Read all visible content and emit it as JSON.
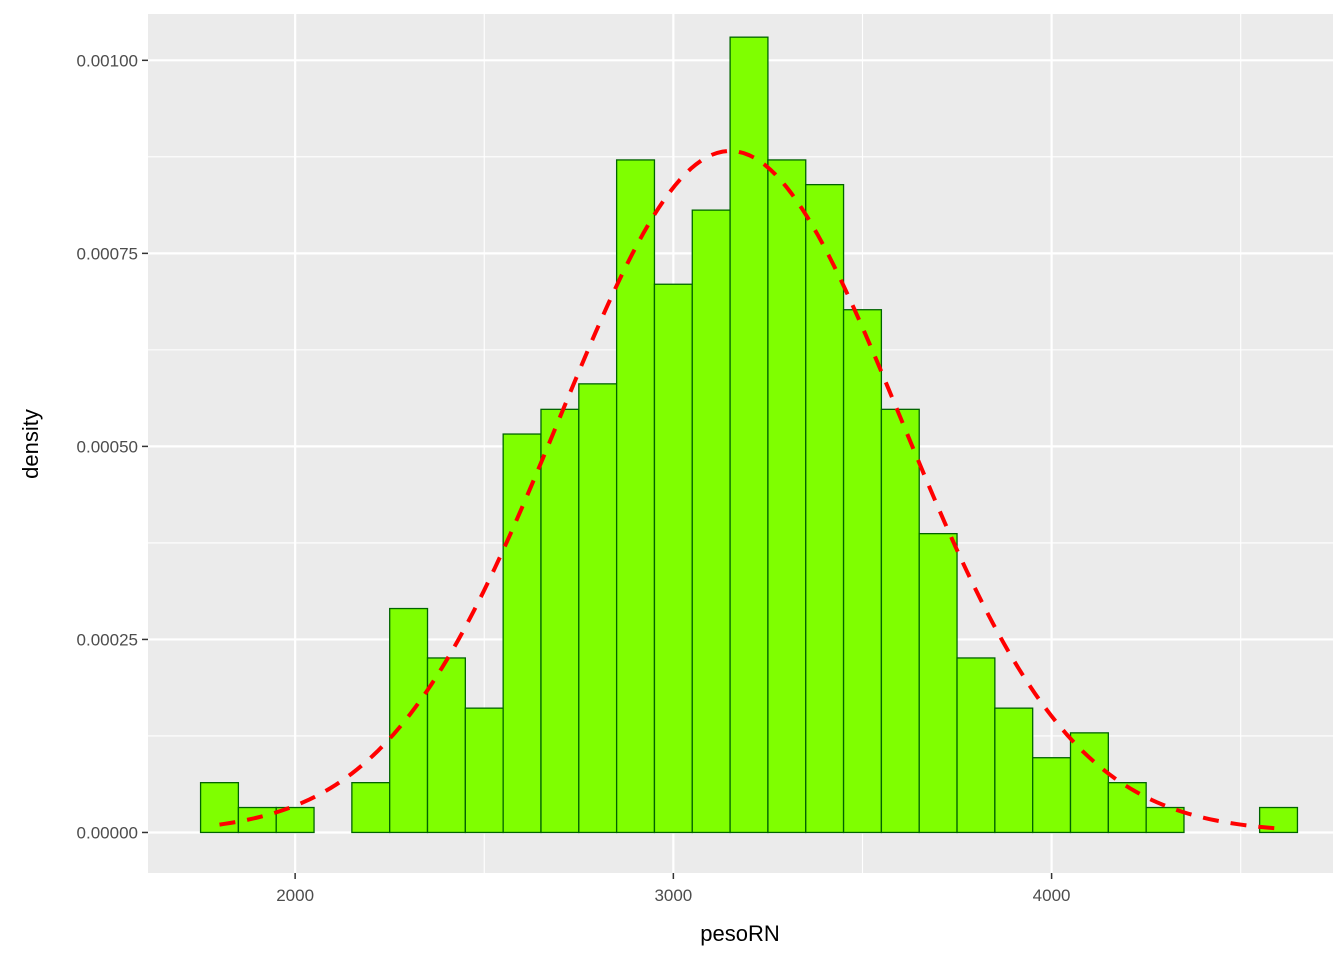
{
  "chart_data": {
    "type": "bar",
    "subtype": "histogram-with-density-curve",
    "title": "",
    "xlabel": "pesoRN",
    "ylabel": "density",
    "xlim": [
      1611,
      4744
    ],
    "ylim": [
      -5.25e-05,
      0.00106
    ],
    "x_ticks": [
      2000,
      3000,
      4000
    ],
    "y_ticks": [
      0,
      0.00025,
      0.0005,
      0.00075,
      0.001
    ],
    "y_tick_labels": [
      "0.00000",
      "0.00025",
      "0.00050",
      "0.00075",
      "0.00100"
    ],
    "x_tick_labels": [
      "2000",
      "3000",
      "4000"
    ],
    "grid": true,
    "bin_width": 100,
    "bins": [
      {
        "x0": 1750,
        "x1": 1850,
        "density": 6.45e-05
      },
      {
        "x0": 1850,
        "x1": 1950,
        "density": 3.23e-05
      },
      {
        "x0": 1950,
        "x1": 2050,
        "density": 3.23e-05
      },
      {
        "x0": 2050,
        "x1": 2150,
        "density": 0
      },
      {
        "x0": 2150,
        "x1": 2250,
        "density": 6.45e-05
      },
      {
        "x0": 2250,
        "x1": 2350,
        "density": 0.00029
      },
      {
        "x0": 2350,
        "x1": 2450,
        "density": 0.000226
      },
      {
        "x0": 2450,
        "x1": 2550,
        "density": 0.000161
      },
      {
        "x0": 2550,
        "x1": 2650,
        "density": 0.000516
      },
      {
        "x0": 2650,
        "x1": 2750,
        "density": 0.000548
      },
      {
        "x0": 2750,
        "x1": 2850,
        "density": 0.000581
      },
      {
        "x0": 2850,
        "x1": 2950,
        "density": 0.000871
      },
      {
        "x0": 2950,
        "x1": 3050,
        "density": 0.00071
      },
      {
        "x0": 3050,
        "x1": 3150,
        "density": 0.000806
      },
      {
        "x0": 3150,
        "x1": 3250,
        "density": 0.00103
      },
      {
        "x0": 3250,
        "x1": 3350,
        "density": 0.000871
      },
      {
        "x0": 3350,
        "x1": 3450,
        "density": 0.000839
      },
      {
        "x0": 3450,
        "x1": 3550,
        "density": 0.000677
      },
      {
        "x0": 3550,
        "x1": 3650,
        "density": 0.000548
      },
      {
        "x0": 3650,
        "x1": 3750,
        "density": 0.000387
      },
      {
        "x0": 3750,
        "x1": 3850,
        "density": 0.000226
      },
      {
        "x0": 3850,
        "x1": 3950,
        "density": 0.000161
      },
      {
        "x0": 3950,
        "x1": 4050,
        "density": 9.68e-05
      },
      {
        "x0": 4050,
        "x1": 4150,
        "density": 0.000129
      },
      {
        "x0": 4150,
        "x1": 4250,
        "density": 6.45e-05
      },
      {
        "x0": 4250,
        "x1": 4350,
        "density": 3.23e-05
      },
      {
        "x0": 4350,
        "x1": 4450,
        "density": 0
      },
      {
        "x0": 4450,
        "x1": 4550,
        "density": 0
      },
      {
        "x0": 4550,
        "x1": 4650,
        "density": 3.23e-05
      }
    ],
    "density_curve": {
      "kind": "normal",
      "mean": 3150,
      "sd": 452,
      "x_range": [
        1800,
        4600
      ],
      "style": "dashed"
    },
    "colors": {
      "panel_background": "#ebebeb",
      "grid_major": "#ffffff",
      "bar_fill": "#7fff00",
      "bar_outline": "#006400",
      "curve": "#ff0000"
    }
  }
}
